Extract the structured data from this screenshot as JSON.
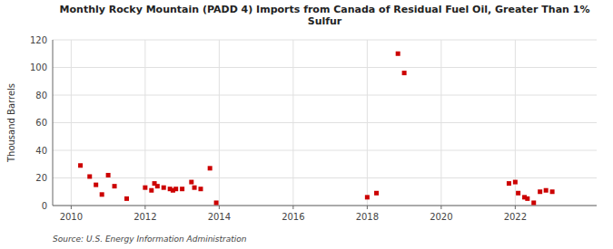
{
  "chart_data": {
    "type": "scatter",
    "title": "Monthly Rocky Mountain (PADD 4) Imports from Canada of Residual Fuel Oil, Greater Than 1%\nSulfur",
    "y_label": "Thousand Barrels",
    "source": "Source: U.S. Energy Information Administration",
    "color": "#cc0000",
    "marker": "square",
    "grid": true,
    "xlim": [
      2009.5,
      2024.2
    ],
    "ylim": [
      0,
      120
    ],
    "xticks": [
      2010,
      2012,
      2014,
      2016,
      2018,
      2020,
      2022
    ],
    "yticks": [
      0,
      20,
      40,
      60,
      80,
      100,
      120
    ],
    "x": [
      2010.25,
      2010.5,
      2010.67,
      2010.83,
      2011.0,
      2011.17,
      2011.5,
      2012.0,
      2012.17,
      2012.25,
      2012.33,
      2012.5,
      2012.67,
      2012.75,
      2012.83,
      2013.0,
      2013.25,
      2013.33,
      2013.5,
      2013.75,
      2013.92,
      2018.0,
      2018.25,
      2018.83,
      2019.0,
      2021.83,
      2022.0,
      2022.08,
      2022.25,
      2022.33,
      2022.5,
      2022.67,
      2022.83,
      2023.0
    ],
    "values": [
      29,
      21,
      15,
      8,
      22,
      14,
      5,
      13,
      11,
      16,
      14,
      13,
      12,
      11,
      12,
      12,
      17,
      13,
      12,
      27,
      2,
      6,
      9,
      110,
      96,
      16,
      17,
      9,
      6,
      5,
      2,
      10,
      11,
      10
    ]
  }
}
